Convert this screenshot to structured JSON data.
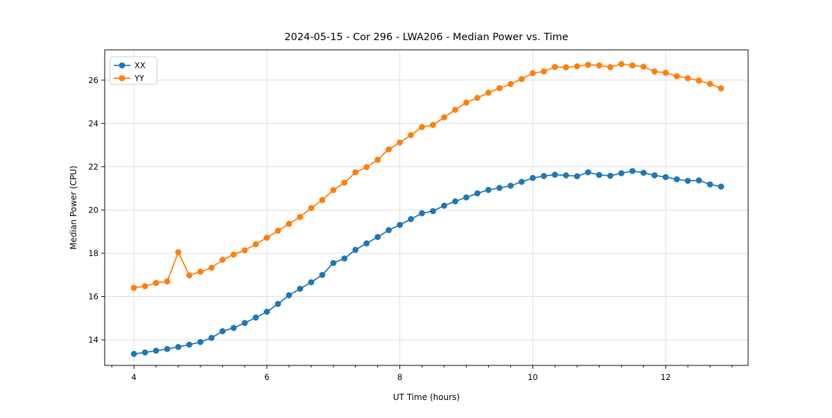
{
  "title": "2024-05-15 - Cor 296 - LWA206 - Median Power vs. Time",
  "chart_data": {
    "type": "line",
    "title": "2024-05-15 - Cor 296 - LWA206 - Median Power vs. Time",
    "xlabel": "UT Time (hours)",
    "ylabel": "Median Power (CPU)",
    "xlim": [
      3.56,
      13.24
    ],
    "ylim": [
      12.82,
      27.4
    ],
    "xticks": [
      4,
      6,
      8,
      10,
      12
    ],
    "yticks": [
      14,
      16,
      18,
      20,
      22,
      24,
      26
    ],
    "x_minor_tick_interval": 0.3333,
    "grid": true,
    "legend_position": "upper left",
    "marker": "circle",
    "x": [
      4.0,
      4.167,
      4.333,
      4.5,
      4.667,
      4.833,
      5.0,
      5.167,
      5.333,
      5.5,
      5.667,
      5.833,
      6.0,
      6.167,
      6.333,
      6.5,
      6.667,
      6.833,
      7.0,
      7.167,
      7.333,
      7.5,
      7.667,
      7.833,
      8.0,
      8.167,
      8.333,
      8.5,
      8.667,
      8.833,
      9.0,
      9.167,
      9.333,
      9.5,
      9.667,
      9.833,
      10.0,
      10.167,
      10.333,
      10.5,
      10.667,
      10.833,
      11.0,
      11.167,
      11.333,
      11.5,
      11.667,
      11.833,
      12.0,
      12.167,
      12.333,
      12.5,
      12.667,
      12.833
    ],
    "series": [
      {
        "name": "XX",
        "color": "#1f77b4",
        "values": [
          13.35,
          13.42,
          13.5,
          13.58,
          13.67,
          13.78,
          13.9,
          14.09,
          14.4,
          14.55,
          14.78,
          15.03,
          15.3,
          15.66,
          16.06,
          16.36,
          16.66,
          17.0,
          17.55,
          17.76,
          18.16,
          18.46,
          18.75,
          19.07,
          19.31,
          19.58,
          19.85,
          19.95,
          20.2,
          20.4,
          20.58,
          20.77,
          20.93,
          21.02,
          21.12,
          21.3,
          21.48,
          21.57,
          21.63,
          21.6,
          21.56,
          21.74,
          21.62,
          21.58,
          21.7,
          21.8,
          21.72,
          21.6,
          21.52,
          21.42,
          21.35,
          21.37,
          21.18,
          21.08
        ]
      },
      {
        "name": "YY",
        "color": "#ff7f0e",
        "values": [
          16.4,
          16.48,
          16.63,
          16.7,
          18.05,
          16.98,
          17.15,
          17.33,
          17.7,
          17.94,
          18.14,
          18.42,
          18.72,
          19.04,
          19.36,
          19.68,
          20.09,
          20.46,
          20.92,
          21.26,
          21.74,
          21.98,
          22.32,
          22.8,
          23.12,
          23.46,
          23.83,
          23.93,
          24.28,
          24.63,
          24.96,
          25.18,
          25.42,
          25.63,
          25.82,
          26.05,
          26.32,
          26.4,
          26.61,
          26.59,
          26.64,
          26.71,
          26.68,
          26.6,
          26.74,
          26.68,
          26.62,
          26.4,
          26.34,
          26.18,
          26.09,
          25.98,
          25.83,
          25.62
        ]
      }
    ]
  }
}
